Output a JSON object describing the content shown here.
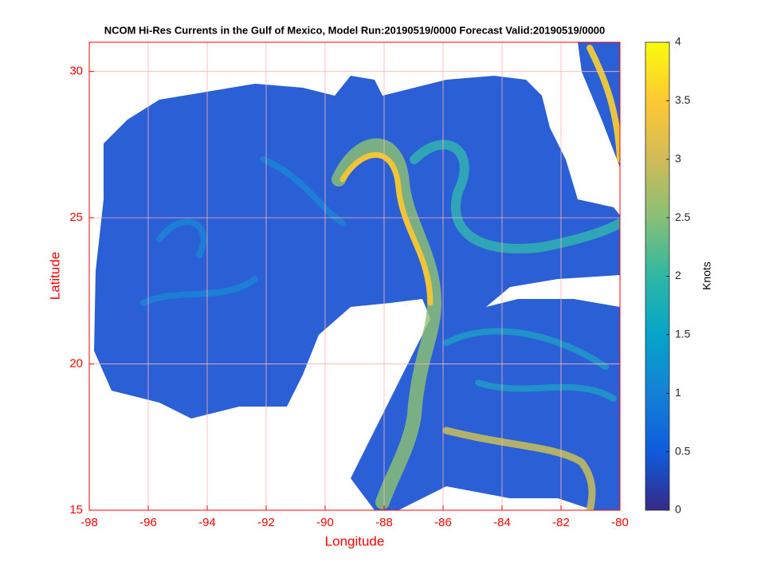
{
  "chart_data": {
    "type": "heatmap",
    "title": "NCOM Hi-Res Currents in the Gulf of Mexico, Model Run:20190519/0000 Forecast Valid:20190519/0000",
    "x_label": "Longitude",
    "y_label": "Latitude",
    "xlim": [
      -98,
      -80
    ],
    "ylim": [
      15,
      31
    ],
    "xticks": [
      -98,
      -96,
      -94,
      -92,
      -90,
      -88,
      -86,
      -84,
      -82,
      -80
    ],
    "yticks": [
      15,
      20,
      25,
      30
    ],
    "grid": true,
    "axis_color": "#ff0000",
    "colorbar": {
      "label": "Knots",
      "lim": [
        0,
        4
      ],
      "ticks": [
        0,
        0.5,
        1,
        1.5,
        2,
        2.5,
        3,
        3.5,
        4
      ],
      "colors": [
        "#352a87",
        "#0f5cdd",
        "#1481d6",
        "#06a4ca",
        "#2eb7a4",
        "#87bf77",
        "#d1bb59",
        "#fec832",
        "#f9fb0e"
      ]
    }
  }
}
